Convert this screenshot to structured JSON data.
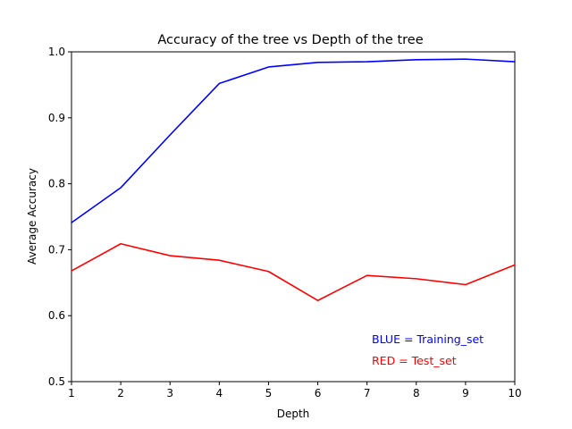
{
  "chart_data": {
    "type": "line",
    "title": "Accuracy of the tree vs Depth of the tree",
    "xlabel": "Depth",
    "ylabel": "Average Accuracy",
    "x": [
      1,
      2,
      3,
      4,
      5,
      6,
      7,
      8,
      9,
      10
    ],
    "xlim": [
      1,
      10
    ],
    "ylim": [
      0.5,
      1.0
    ],
    "xticks": [
      "1",
      "2",
      "3",
      "4",
      "5",
      "6",
      "7",
      "8",
      "9",
      "10"
    ],
    "yticks": [
      "0.5",
      "0.6",
      "0.7",
      "0.8",
      "0.9",
      "1.0"
    ],
    "grid": false,
    "series": [
      {
        "color": "#0000ff",
        "values": [
          0.741,
          0.794,
          0.874,
          0.952,
          0.977,
          0.984,
          0.985,
          0.988,
          0.989,
          0.985
        ]
      },
      {
        "color": "#ff0000",
        "values": [
          0.668,
          0.709,
          0.691,
          0.684,
          0.667,
          0.623,
          0.661,
          0.656,
          0.647,
          0.677
        ]
      }
    ],
    "annotations": [
      {
        "text": "BLUE = Training_set",
        "color": "#0000ff"
      },
      {
        "text": "RED = Test_set",
        "color": "#ff0000"
      }
    ]
  }
}
